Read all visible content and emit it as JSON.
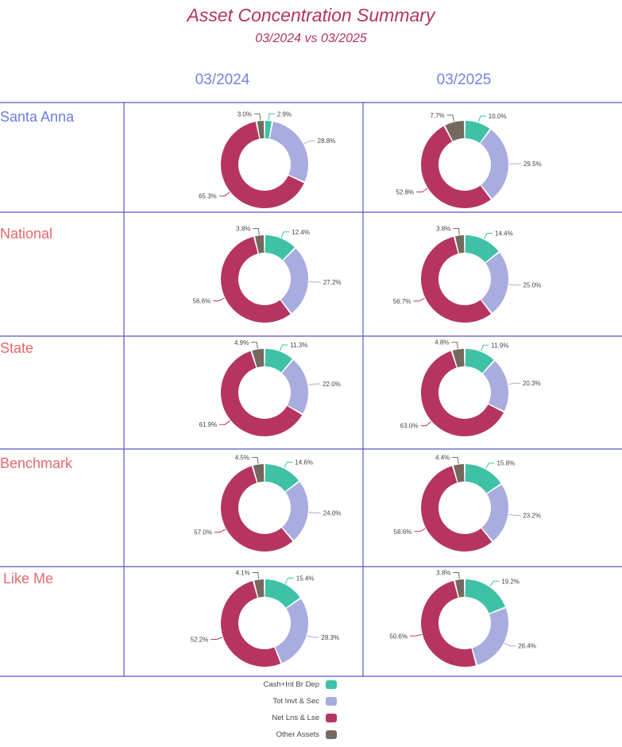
{
  "title": "Asset Concentration Summary",
  "subtitle": "03/2024 vs 03/2025",
  "columns": [
    "03/2024",
    "03/2025"
  ],
  "rows": [
    {
      "label": "Santa Anna",
      "color": "#6b7fe0"
    },
    {
      "label": "National",
      "color": "#e8676b"
    },
    {
      "label": "State",
      "color": "#e8676b"
    },
    {
      "label": "Benchmark",
      "color": "#e8676b"
    },
    {
      "label": "Like Me",
      "color": "#e8676b"
    }
  ],
  "legend": [
    {
      "label": "Cash+Int Br Dep",
      "color": "#3fc1a6"
    },
    {
      "label": "Tot Invt & Sec",
      "color": "#a8acdf"
    },
    {
      "label": "Net Lns & Lse",
      "color": "#b63560"
    },
    {
      "label": "Other Assets",
      "color": "#75695f"
    }
  ],
  "chart_data": {
    "type": "pie",
    "variant": "donut",
    "categories": [
      "Cash+Int Br Dep",
      "Tot Invt & Sec",
      "Net Lns & Lse",
      "Other Assets"
    ],
    "colors": [
      "#3fc1a6",
      "#a8acdf",
      "#b63560",
      "#75695f"
    ],
    "charts": [
      {
        "row": "Santa Anna",
        "period": "03/2024",
        "values": [
          2.9,
          28.8,
          65.3,
          3.0
        ]
      },
      {
        "row": "Santa Anna",
        "period": "03/2025",
        "values": [
          10.0,
          29.5,
          52.8,
          7.7
        ]
      },
      {
        "row": "National",
        "period": "03/2024",
        "values": [
          12.4,
          27.2,
          56.6,
          3.8
        ]
      },
      {
        "row": "National",
        "period": "03/2025",
        "values": [
          14.4,
          25.0,
          56.7,
          3.8
        ]
      },
      {
        "row": "State",
        "period": "03/2024",
        "values": [
          11.3,
          22.0,
          61.9,
          4.9
        ]
      },
      {
        "row": "State",
        "period": "03/2025",
        "values": [
          11.9,
          20.3,
          63.0,
          4.8
        ]
      },
      {
        "row": "Benchmark",
        "period": "03/2024",
        "values": [
          14.6,
          24.0,
          57.0,
          4.5
        ]
      },
      {
        "row": "Benchmark",
        "period": "03/2025",
        "values": [
          15.8,
          23.2,
          56.6,
          4.4
        ]
      },
      {
        "row": "Like Me",
        "period": "03/2024",
        "values": [
          15.4,
          28.3,
          52.2,
          4.1
        ]
      },
      {
        "row": "Like Me",
        "period": "03/2025",
        "values": [
          19.2,
          26.4,
          50.6,
          3.8
        ]
      }
    ]
  }
}
